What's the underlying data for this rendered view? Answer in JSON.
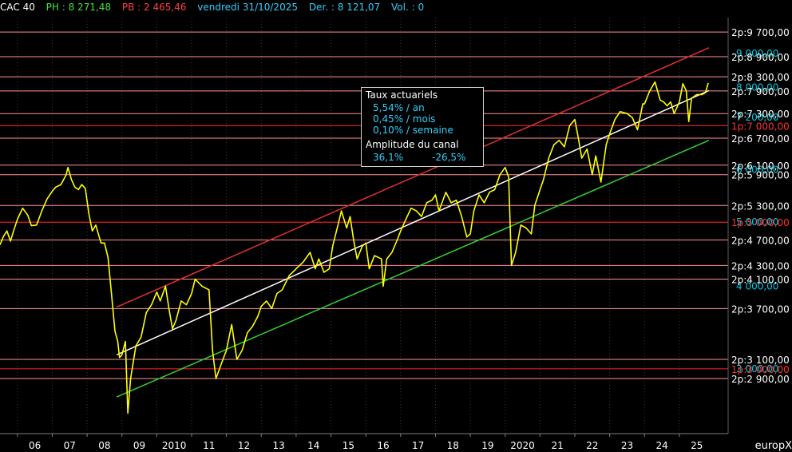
{
  "header": {
    "symbol": "CAC 40",
    "ph": "PH : 8 271,48",
    "pb": "PB : 2 465,46",
    "date": "vendredi 31/10/2025",
    "der": "Der. : 8 121,07",
    "vol": "Vol. : 0"
  },
  "legend": {
    "title": "Taux actuariels",
    "rate_year": "5,54% / an",
    "rate_month": "0,45% / mois",
    "rate_week": "0,10% / semaine",
    "amp_title": "Amplitude du canal",
    "amp_up": "36,1%",
    "amp_down": "-26,5%"
  },
  "watermark": "europX",
  "colors": {
    "price": "#ffff00",
    "upper_channel": "#e03030",
    "middle_channel": "#ffffff",
    "lower_channel": "#30d030",
    "support_line": "#ff9090",
    "key_line": "#e02020",
    "axis_label": "#ffffff",
    "aux_label": "#00c8e0"
  },
  "chart_data": {
    "type": "line",
    "title": "CAC 40",
    "y_scale": "log",
    "ylim": [
      2400,
      10200
    ],
    "xlim": [
      2005.5,
      2026.4
    ],
    "x_ticks": [
      {
        "year": 2006,
        "label": "06"
      },
      {
        "year": 2007,
        "label": "07"
      },
      {
        "year": 2008,
        "label": "08"
      },
      {
        "year": 2009,
        "label": "09"
      },
      {
        "year": 2010,
        "label": "2010"
      },
      {
        "year": 2011,
        "label": "11"
      },
      {
        "year": 2012,
        "label": "12"
      },
      {
        "year": 2013,
        "label": "13"
      },
      {
        "year": 2014,
        "label": "14"
      },
      {
        "year": 2015,
        "label": "15"
      },
      {
        "year": 2016,
        "label": "16"
      },
      {
        "year": 2017,
        "label": "17"
      },
      {
        "year": 2018,
        "label": "18"
      },
      {
        "year": 2019,
        "label": "19"
      },
      {
        "year": 2020,
        "label": "2020"
      },
      {
        "year": 2021,
        "label": "21"
      },
      {
        "year": 2022,
        "label": "22"
      },
      {
        "year": 2023,
        "label": "23"
      },
      {
        "year": 2024,
        "label": "24"
      },
      {
        "year": 2025,
        "label": "25"
      }
    ],
    "support_levels": [
      {
        "value": 9700,
        "label": "2p:9 700,00"
      },
      {
        "value": 8900,
        "label": "2p:8 900,00"
      },
      {
        "value": 8300,
        "label": "2p:8 300,00"
      },
      {
        "value": 7900,
        "label": "2p:7 900,00"
      },
      {
        "value": 7300,
        "label": "2p:7 300,00"
      },
      {
        "value": 6700,
        "label": "2p:6 700,00"
      },
      {
        "value": 6100,
        "label": "2p:6 100,00"
      },
      {
        "value": 5900,
        "label": "2p:5 900,00"
      },
      {
        "value": 5300,
        "label": "2p:5 300,00"
      },
      {
        "value": 4700,
        "label": "2p:4 700,00"
      },
      {
        "value": 4300,
        "label": "2p:4 300,00"
      },
      {
        "value": 4100,
        "label": "2p:4 100,00"
      },
      {
        "value": 3700,
        "label": "2p:3 700,00"
      },
      {
        "value": 3100,
        "label": "2p:3 100,00"
      },
      {
        "value": 2900,
        "label": "2p:2 900,00"
      }
    ],
    "key_levels": [
      {
        "value": 7000,
        "label": "1p:7 000,00"
      },
      {
        "value": 5000,
        "label": "1p:5 000,00"
      },
      {
        "value": 3000,
        "label": "1p:3 000,00"
      }
    ],
    "aux_levels": [
      {
        "value": 9000,
        "label": "9 000,00"
      },
      {
        "value": 8000,
        "label": "8 000,00"
      },
      {
        "value": 7200,
        "label": "7 200,00"
      },
      {
        "value": 6000,
        "label": "6 000,00"
      },
      {
        "value": 5000,
        "label": "5 000,00"
      },
      {
        "value": 4000,
        "label": "4 000,00"
      },
      {
        "value": 3000,
        "label": "3 000,00"
      }
    ],
    "channel": {
      "upper": [
        [
          2008.85,
          3720
        ],
        [
          2025.85,
          9180
        ]
      ],
      "middle": [
        [
          2008.85,
          3150
        ],
        [
          2025.85,
          7910
        ]
      ],
      "lower": [
        [
          2008.85,
          2720
        ],
        [
          2025.85,
          6650
        ]
      ]
    },
    "series": [
      {
        "values": [
          [
            2005.5,
            4620
          ],
          [
            2005.6,
            4760
          ],
          [
            2005.7,
            4850
          ],
          [
            2005.8,
            4680
          ],
          [
            2005.9,
            4870
          ],
          [
            2006.0,
            5050
          ],
          [
            2006.15,
            5250
          ],
          [
            2006.3,
            5120
          ],
          [
            2006.4,
            4940
          ],
          [
            2006.55,
            4950
          ],
          [
            2006.7,
            5200
          ],
          [
            2006.85,
            5420
          ],
          [
            2007.0,
            5570
          ],
          [
            2007.1,
            5650
          ],
          [
            2007.25,
            5700
          ],
          [
            2007.4,
            5900
          ],
          [
            2007.45,
            6050
          ],
          [
            2007.55,
            5800
          ],
          [
            2007.65,
            5650
          ],
          [
            2007.75,
            5600
          ],
          [
            2007.85,
            5700
          ],
          [
            2007.95,
            5620
          ],
          [
            2008.05,
            5150
          ],
          [
            2008.15,
            4850
          ],
          [
            2008.25,
            4950
          ],
          [
            2008.4,
            4650
          ],
          [
            2008.5,
            4650
          ],
          [
            2008.6,
            4420
          ],
          [
            2008.7,
            3900
          ],
          [
            2008.8,
            3420
          ],
          [
            2008.88,
            3300
          ],
          [
            2008.93,
            3120
          ],
          [
            2009.0,
            3150
          ],
          [
            2009.1,
            3300
          ],
          [
            2009.17,
            2570
          ],
          [
            2009.25,
            2900
          ],
          [
            2009.4,
            3250
          ],
          [
            2009.55,
            3350
          ],
          [
            2009.7,
            3650
          ],
          [
            2009.85,
            3750
          ],
          [
            2010.0,
            3920
          ],
          [
            2010.1,
            3800
          ],
          [
            2010.25,
            4000
          ],
          [
            2010.35,
            3700
          ],
          [
            2010.45,
            3450
          ],
          [
            2010.55,
            3550
          ],
          [
            2010.7,
            3800
          ],
          [
            2010.85,
            3750
          ],
          [
            2011.0,
            3900
          ],
          [
            2011.1,
            4100
          ],
          [
            2011.3,
            4000
          ],
          [
            2011.5,
            3950
          ],
          [
            2011.6,
            3200
          ],
          [
            2011.7,
            2900
          ],
          [
            2011.85,
            3050
          ],
          [
            2012.0,
            3200
          ],
          [
            2012.15,
            3500
          ],
          [
            2012.3,
            3100
          ],
          [
            2012.45,
            3200
          ],
          [
            2012.6,
            3400
          ],
          [
            2012.75,
            3480
          ],
          [
            2012.9,
            3600
          ],
          [
            2013.0,
            3730
          ],
          [
            2013.15,
            3800
          ],
          [
            2013.3,
            3700
          ],
          [
            2013.45,
            3900
          ],
          [
            2013.6,
            3950
          ],
          [
            2013.8,
            4150
          ],
          [
            2014.0,
            4250
          ],
          [
            2014.2,
            4350
          ],
          [
            2014.4,
            4500
          ],
          [
            2014.55,
            4250
          ],
          [
            2014.65,
            4400
          ],
          [
            2014.8,
            4200
          ],
          [
            2014.95,
            4250
          ],
          [
            2015.05,
            4600
          ],
          [
            2015.2,
            4950
          ],
          [
            2015.3,
            5200
          ],
          [
            2015.45,
            4900
          ],
          [
            2015.55,
            5100
          ],
          [
            2015.65,
            4700
          ],
          [
            2015.75,
            4400
          ],
          [
            2015.9,
            4600
          ],
          [
            2016.0,
            4650
          ],
          [
            2016.1,
            4250
          ],
          [
            2016.25,
            4450
          ],
          [
            2016.45,
            4400
          ],
          [
            2016.5,
            4000
          ],
          [
            2016.6,
            4400
          ],
          [
            2016.75,
            4500
          ],
          [
            2016.9,
            4700
          ],
          [
            2017.0,
            4850
          ],
          [
            2017.15,
            5050
          ],
          [
            2017.3,
            5250
          ],
          [
            2017.45,
            5200
          ],
          [
            2017.6,
            5100
          ],
          [
            2017.75,
            5350
          ],
          [
            2017.9,
            5400
          ],
          [
            2018.0,
            5500
          ],
          [
            2018.1,
            5200
          ],
          [
            2018.3,
            5550
          ],
          [
            2018.45,
            5350
          ],
          [
            2018.6,
            5400
          ],
          [
            2018.75,
            5100
          ],
          [
            2018.9,
            4750
          ],
          [
            2019.0,
            4800
          ],
          [
            2019.1,
            5200
          ],
          [
            2019.25,
            5500
          ],
          [
            2019.4,
            5350
          ],
          [
            2019.55,
            5550
          ],
          [
            2019.7,
            5600
          ],
          [
            2019.85,
            5900
          ],
          [
            2020.0,
            6050
          ],
          [
            2020.1,
            5850
          ],
          [
            2020.18,
            4300
          ],
          [
            2020.3,
            4500
          ],
          [
            2020.45,
            4950
          ],
          [
            2020.6,
            4900
          ],
          [
            2020.75,
            4800
          ],
          [
            2020.85,
            5300
          ],
          [
            2021.0,
            5600
          ],
          [
            2021.1,
            5800
          ],
          [
            2021.25,
            6250
          ],
          [
            2021.4,
            6550
          ],
          [
            2021.55,
            6650
          ],
          [
            2021.7,
            6500
          ],
          [
            2021.85,
            7000
          ],
          [
            2022.0,
            7150
          ],
          [
            2022.1,
            6700
          ],
          [
            2022.2,
            6250
          ],
          [
            2022.35,
            6450
          ],
          [
            2022.5,
            5900
          ],
          [
            2022.6,
            6300
          ],
          [
            2022.75,
            5750
          ],
          [
            2022.9,
            6550
          ],
          [
            2023.0,
            6800
          ],
          [
            2023.15,
            7150
          ],
          [
            2023.3,
            7350
          ],
          [
            2023.5,
            7300
          ],
          [
            2023.65,
            7200
          ],
          [
            2023.8,
            6900
          ],
          [
            2023.95,
            7550
          ],
          [
            2024.0,
            7550
          ],
          [
            2024.15,
            7900
          ],
          [
            2024.3,
            8150
          ],
          [
            2024.45,
            7650
          ],
          [
            2024.55,
            7600
          ],
          [
            2024.65,
            7500
          ],
          [
            2024.75,
            7600
          ],
          [
            2024.85,
            7300
          ],
          [
            2025.0,
            7600
          ],
          [
            2025.1,
            8100
          ],
          [
            2025.2,
            7900
          ],
          [
            2025.27,
            7100
          ],
          [
            2025.35,
            7700
          ],
          [
            2025.5,
            7800
          ],
          [
            2025.65,
            7800
          ],
          [
            2025.75,
            7850
          ],
          [
            2025.83,
            8121
          ]
        ]
      }
    ]
  }
}
